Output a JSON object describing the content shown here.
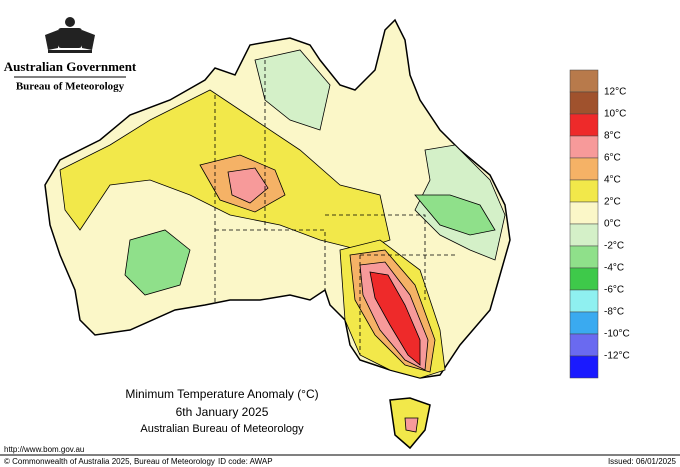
{
  "header": {
    "government": "Australian Government",
    "agency": "Bureau of Meteorology"
  },
  "legend": {
    "labels": [
      "12°C",
      "10°C",
      "8°C",
      "6°C",
      "4°C",
      "2°C",
      "0°C",
      "-2°C",
      "-4°C",
      "-6°C",
      "-8°C",
      "-10°C",
      "-12°C"
    ],
    "colors": [
      "#b87a4b",
      "#a0522d",
      "#ee2a2a",
      "#f79a9a",
      "#f5b266",
      "#f2e84a",
      "#fbf7c8",
      "#d4f0c8",
      "#8fe08a",
      "#3ec94a",
      "#8ff0f0",
      "#3aaaf0",
      "#6a6af0",
      "#1a1aff"
    ]
  },
  "caption": {
    "title": "Minimum Temperature Anomaly (°C)",
    "date": "6th January 2025",
    "source": "Australian Bureau of Meteorology"
  },
  "footer": {
    "url": "http://www.bom.gov.au",
    "copyright": "© Commonwealth of Australia 2025, Bureau of Meteorology",
    "id_code": "ID code: AWAP",
    "issued": "Issued: 06/01/2025"
  }
}
